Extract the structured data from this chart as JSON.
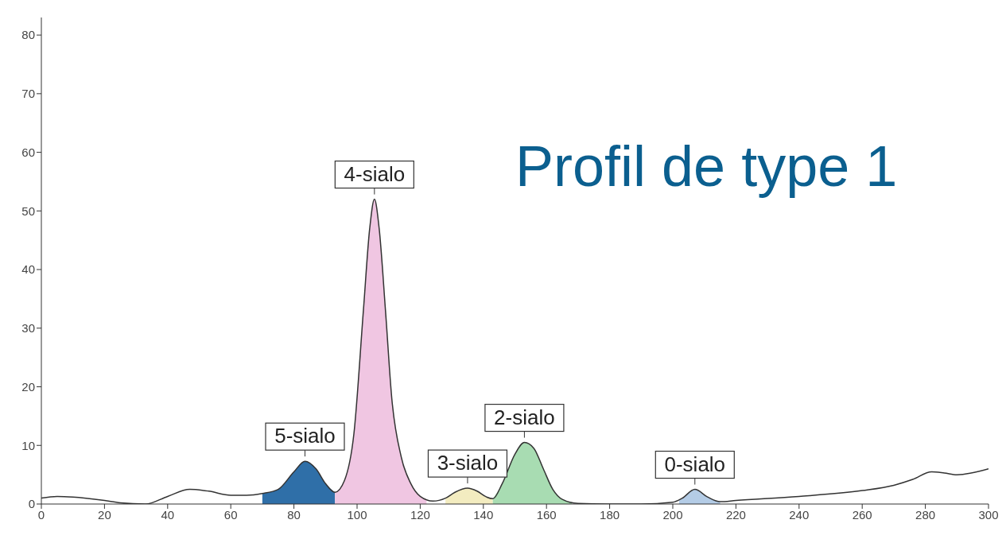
{
  "chart_data": {
    "type": "line",
    "title": "Profil de type 1",
    "xlim": [
      0,
      300
    ],
    "xticks": [
      0,
      20,
      40,
      60,
      80,
      100,
      120,
      140,
      160,
      180,
      200,
      220,
      240,
      260,
      280,
      300
    ],
    "ylim": [
      0,
      83
    ],
    "yticks": [
      0,
      10,
      20,
      30,
      40,
      50,
      60,
      70,
      80
    ],
    "grid": false,
    "legend": false,
    "series": [
      {
        "type": "area",
        "color": "#2f6fa8",
        "x": [
          70,
          75,
          80,
          83.5,
          87,
          90,
          93
        ],
        "values": [
          1.8,
          2.5,
          5.5,
          7.3,
          6.0,
          3.5,
          2.0
        ]
      },
      {
        "type": "area",
        "color": "#f0c6e2",
        "x": [
          93,
          96,
          99,
          102,
          104,
          105.5,
          107,
          109,
          111,
          114,
          117,
          120,
          122
        ],
        "values": [
          2.0,
          4,
          12,
          33,
          47,
          52,
          47,
          33,
          18,
          8,
          3.5,
          1.3,
          0.8
        ]
      },
      {
        "type": "area",
        "color": "#f3ecc0",
        "x": [
          128,
          131,
          135,
          138,
          141,
          143
        ],
        "values": [
          1.0,
          2.0,
          2.7,
          2.2,
          1.2,
          0.9
        ]
      },
      {
        "type": "area",
        "color": "#a8dcb2",
        "x": [
          143,
          146,
          150,
          153,
          156,
          159,
          162,
          165,
          168
        ],
        "values": [
          0.9,
          3.5,
          8.5,
          10.5,
          9.5,
          6,
          2.5,
          0.8,
          0.3
        ]
      },
      {
        "type": "area",
        "color": "#b4cce6",
        "x": [
          202,
          203,
          207,
          211,
          215
        ],
        "values": [
          0.6,
          1.0,
          2.5,
          1.2,
          0.4
        ]
      },
      {
        "color": "#333333",
        "x": [
          0,
          5,
          10,
          20,
          25,
          33,
          40,
          47,
          53,
          60,
          65,
          70,
          75,
          80,
          83.5,
          87,
          90,
          93,
          96,
          99,
          102,
          104,
          105.5,
          107,
          109,
          111,
          114,
          117,
          120,
          124,
          128,
          131,
          135,
          138,
          141,
          143,
          146,
          150,
          153,
          156,
          159,
          162,
          165,
          170,
          180,
          190,
          200,
          203,
          207,
          211,
          215,
          220,
          240,
          260,
          270,
          276,
          282,
          286,
          290,
          300
        ],
        "values": [
          1.0,
          1.3,
          1.2,
          0.6,
          0.2,
          0,
          1.3,
          2.5,
          2.2,
          1.5,
          1.5,
          1.8,
          2.5,
          5.5,
          7.3,
          6.0,
          3.5,
          2.0,
          4,
          12,
          33,
          47,
          52,
          47,
          33,
          18,
          8,
          3.5,
          1.3,
          0.5,
          1.0,
          2.0,
          2.7,
          2.2,
          1.2,
          0.9,
          3.5,
          8.5,
          10.5,
          9.5,
          6,
          2.5,
          0.8,
          0.1,
          0,
          0,
          0.3,
          1.0,
          2.5,
          1.2,
          0.4,
          0.6,
          1.3,
          2.3,
          3.2,
          4.2,
          5.5,
          5.3,
          5.0,
          6.0
        ]
      }
    ],
    "annotations": [
      {
        "text": "5-sialo",
        "x": 83.5,
        "y": 7.3
      },
      {
        "text": "4-sialo",
        "x": 105.5,
        "y": 52
      },
      {
        "text": "3-sialo",
        "x": 135,
        "y": 2.7
      },
      {
        "text": "2-sialo",
        "x": 153,
        "y": 10.5
      },
      {
        "text": "0-sialo",
        "x": 207,
        "y": 2.5
      }
    ]
  }
}
